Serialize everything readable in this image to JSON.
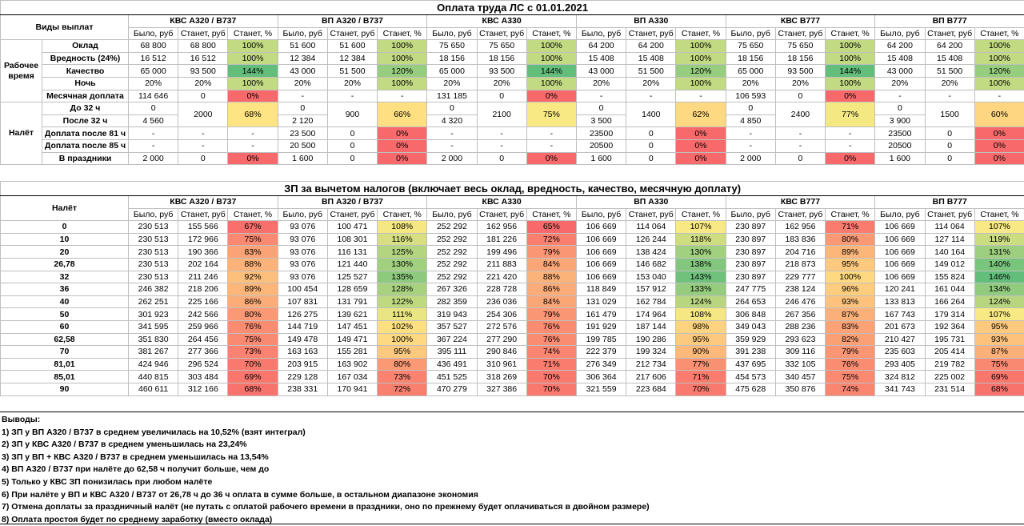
{
  "columns": {
    "groups": [
      "КВС А320 / В737",
      "ВП А320 / В737",
      "КВС А330",
      "ВП А330",
      "КВС В777",
      "ВП В777"
    ],
    "subheaders": [
      "Было, руб",
      "Станет, руб",
      "Станет, %"
    ]
  },
  "table1": {
    "title": "Оплата труда ЛС с 01.01.2021",
    "header_label": "Виды выплат",
    "sections": [
      {
        "label": "Рабочее время",
        "rows": [
          {
            "label": "Оклад",
            "cells": [
              "68 800",
              "68 800",
              "100%",
              "51 600",
              "51 600",
              "100%",
              "75 650",
              "75 650",
              "100%",
              "64 200",
              "64 200",
              "100%",
              "75 650",
              "75 650",
              "100%",
              "64 200",
              "64 200",
              "100%"
            ]
          },
          {
            "label": "Вредность (24%)",
            "cells": [
              "16 512",
              "16 512",
              "100%",
              "12 384",
              "12 384",
              "100%",
              "18 156",
              "18 156",
              "100%",
              "15 408",
              "15 408",
              "100%",
              "18 156",
              "18 156",
              "100%",
              "15 408",
              "15 408",
              "100%"
            ]
          },
          {
            "label": "Качество",
            "cells": [
              "65 000",
              "93 500",
              "144%",
              "43 000",
              "51 500",
              "120%",
              "65 000",
              "93 500",
              "144%",
              "43 000",
              "51 500",
              "120%",
              "65 000",
              "93 500",
              "144%",
              "43 000",
              "51 500",
              "120%"
            ]
          },
          {
            "label": "Ночь",
            "cells": [
              "20%",
              "20%",
              "100%",
              "20%",
              "20%",
              "100%",
              "20%",
              "20%",
              "100%",
              "20%",
              "20%",
              "100%",
              "20%",
              "20%",
              "100%",
              "20%",
              "20%",
              "100%"
            ]
          },
          {
            "label": "Месячная доплата",
            "cells": [
              "114 646",
              "0",
              "0%",
              "-",
              "-",
              "-",
              "131 185",
              "0",
              "0%",
              "-",
              "-",
              "-",
              "106 593",
              "0",
              "0%",
              "-",
              "-",
              "-"
            ]
          }
        ]
      },
      {
        "label": "Налёт",
        "rows": [
          {
            "label": "До 32 ч",
            "cells": [
              "0",
              "2000",
              "68%",
              "0",
              "900",
              "66%",
              "0",
              "2100",
              "75%",
              "0",
              "1400",
              "62%",
              "0",
              "2400",
              "77%",
              "0",
              "1500",
              "60%"
            ]
          },
          {
            "label": "После 32 ч",
            "cells": [
              "4 560",
              "2 120",
              "4 320",
              "3 500",
              "4 850",
              "3 900"
            ]
          },
          {
            "label": "Доплата после 81 ч",
            "cells": [
              "-",
              "-",
              "-",
              "23 500",
              "0",
              "0%",
              "-",
              "-",
              "-",
              "23500",
              "0",
              "0%",
              "-",
              "-",
              "-",
              "23500",
              "0",
              "0%"
            ]
          },
          {
            "label": "Доплата после 85 ч",
            "cells": [
              "-",
              "-",
              "-",
              "20 500",
              "0",
              "0%",
              "-",
              "-",
              "-",
              "20500",
              "0",
              "0%",
              "-",
              "-",
              "-",
              "20500",
              "0",
              "0%"
            ]
          },
          {
            "label": "В праздники",
            "cells": [
              "2 000",
              "0",
              "0%",
              "1 600",
              "0",
              "0%",
              "2 000",
              "0",
              "0%",
              "1 600",
              "0",
              "0%",
              "2 000",
              "0",
              "0%",
              "1 600",
              "0",
              "0%"
            ]
          }
        ]
      }
    ]
  },
  "table2": {
    "title": "ЗП за вычетом налогов (включает весь оклад, вредность, качество, месячную доплату)",
    "header_label": "Налёт",
    "rows": [
      {
        "label": "0",
        "cells": [
          "230 513",
          "155 566",
          "67%",
          "93 076",
          "100 471",
          "108%",
          "252 292",
          "162 956",
          "65%",
          "106 669",
          "114 064",
          "107%",
          "230 897",
          "162 956",
          "71%",
          "106 669",
          "114 064",
          "107%"
        ]
      },
      {
        "label": "10",
        "cells": [
          "230 513",
          "172 966",
          "75%",
          "93 076",
          "108 301",
          "116%",
          "252 292",
          "181 226",
          "72%",
          "106 669",
          "126 244",
          "118%",
          "230 897",
          "183 836",
          "80%",
          "106 669",
          "127 114",
          "119%"
        ]
      },
      {
        "label": "20",
        "cells": [
          "230 513",
          "190 366",
          "83%",
          "93 076",
          "116 131",
          "125%",
          "252 292",
          "199 496",
          "79%",
          "106 669",
          "138 424",
          "130%",
          "230 897",
          "204 716",
          "89%",
          "106 669",
          "140 164",
          "131%"
        ]
      },
      {
        "label": "26,78",
        "cells": [
          "230 513",
          "202 164",
          "88%",
          "93 076",
          "121 440",
          "130%",
          "252 292",
          "211 883",
          "84%",
          "106 669",
          "146 682",
          "138%",
          "230 897",
          "218 873",
          "95%",
          "106 669",
          "149 012",
          "140%"
        ]
      },
      {
        "label": "32",
        "cells": [
          "230 513",
          "211 246",
          "92%",
          "93 076",
          "125 527",
          "135%",
          "252 292",
          "221 420",
          "88%",
          "106 669",
          "153 040",
          "143%",
          "230 897",
          "229 777",
          "100%",
          "106 669",
          "155 824",
          "146%"
        ]
      },
      {
        "label": "36",
        "cells": [
          "246 382",
          "218 206",
          "89%",
          "100 454",
          "128 659",
          "128%",
          "267 326",
          "228 728",
          "86%",
          "118 849",
          "157 912",
          "133%",
          "247 775",
          "238 124",
          "96%",
          "120 241",
          "161 044",
          "134%"
        ]
      },
      {
        "label": "40",
        "cells": [
          "262 251",
          "225 166",
          "86%",
          "107 831",
          "131 791",
          "122%",
          "282 359",
          "236 036",
          "84%",
          "131 029",
          "162 784",
          "124%",
          "264 653",
          "246 476",
          "93%",
          "133 813",
          "166 264",
          "124%"
        ]
      },
      {
        "label": "50",
        "cells": [
          "301 923",
          "242 566",
          "80%",
          "126 275",
          "139 621",
          "111%",
          "319 943",
          "254 306",
          "79%",
          "161 479",
          "174 964",
          "108%",
          "306 848",
          "267 356",
          "87%",
          "167 743",
          "179 314",
          "107%"
        ]
      },
      {
        "label": "60",
        "cells": [
          "341 595",
          "259 966",
          "76%",
          "144 719",
          "147 451",
          "102%",
          "357 527",
          "272 576",
          "76%",
          "191 929",
          "187 144",
          "98%",
          "349 043",
          "288 236",
          "83%",
          "201 673",
          "192 364",
          "95%"
        ]
      },
      {
        "label": "62,58",
        "cells": [
          "351 830",
          "264 456",
          "75%",
          "149 478",
          "149 471",
          "100%",
          "367 224",
          "277 290",
          "76%",
          "199 785",
          "190 286",
          "95%",
          "359 929",
          "293 623",
          "82%",
          "210 427",
          "195 731",
          "93%"
        ]
      },
      {
        "label": "70",
        "cells": [
          "381 267",
          "277 366",
          "73%",
          "163 163",
          "155 281",
          "95%",
          "395 111",
          "290 846",
          "74%",
          "222 379",
          "199 324",
          "90%",
          "391 238",
          "309 116",
          "79%",
          "235 603",
          "205 414",
          "87%"
        ]
      },
      {
        "label": "81,01",
        "cells": [
          "424 946",
          "296 524",
          "70%",
          "203 915",
          "163 902",
          "80%",
          "436 491",
          "310 961",
          "71%",
          "276 349",
          "212 734",
          "77%",
          "437 695",
          "332 105",
          "76%",
          "293 405",
          "219 782",
          "75%"
        ]
      },
      {
        "label": "85,01",
        "cells": [
          "440 815",
          "303 484",
          "69%",
          "229 128",
          "167 034",
          "73%",
          "451 525",
          "318 269",
          "70%",
          "306 364",
          "217 606",
          "71%",
          "454 573",
          "340 457",
          "75%",
          "324 812",
          "225 002",
          "69%"
        ]
      },
      {
        "label": "90",
        "cells": [
          "460 611",
          "312 166",
          "68%",
          "238 331",
          "170 941",
          "72%",
          "470 279",
          "327 386",
          "70%",
          "321 559",
          "223 684",
          "70%",
          "475 628",
          "350 876",
          "74%",
          "341 743",
          "231 514",
          "68%"
        ]
      }
    ]
  },
  "conclusions": {
    "title": "Выводы:",
    "items": [
      "1) ЗП у ВП А320 / В737 в среднем увеличилась на 10,52% (взят интеграл)",
      "2) ЗП у КВС А320 / В737 в среднем уменьшилась на 23,24%",
      "3) ЗП у ВП + КВС А320 / В737 в среднем уменьшилась на 13,54%",
      "4) ВП А320 / В737 при налёте до 62,58 ч получит больше, чем до",
      "5) Только у КВС ЗП понизилась при любом налёте",
      "6) При налёте у ВП и КВС А320 / В737 от 26,78 ч до 36 ч оплата в сумме больше, в остальном диапазоне экономия",
      "7) Отмена доплаты за праздничный налёт (не путать с оплатой рабочего времени в праздники, оно по прежнему будет оплачиваться в двойном размере)",
      "8) Оплата простоя будет по среднему заработку (вместо оклада)"
    ]
  }
}
